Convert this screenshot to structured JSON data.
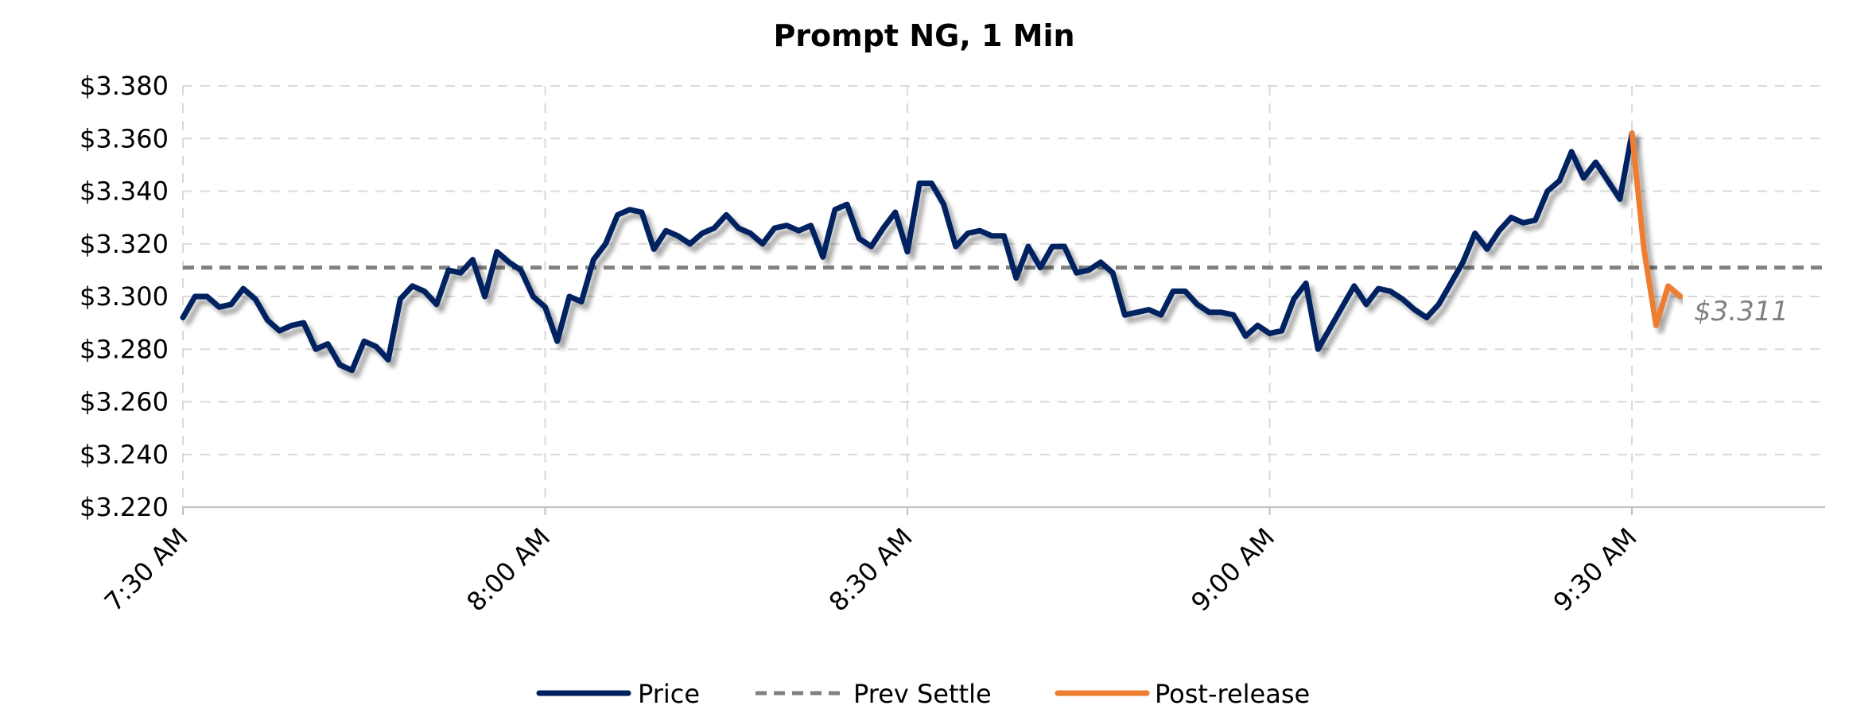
{
  "chart_data": {
    "type": "line",
    "title": "Prompt NG, 1 Min",
    "xlabel": "",
    "ylabel": "",
    "ylim": [
      3.22,
      3.38
    ],
    "y_ticks": [
      "$3.220",
      "$3.240",
      "$3.260",
      "$3.280",
      "$3.300",
      "$3.320",
      "$3.340",
      "$3.360",
      "$3.380"
    ],
    "x_ticks": [
      "7:30 AM",
      "8:00 AM",
      "8:30 AM",
      "9:00 AM",
      "9:30 AM"
    ],
    "xlim": [
      "7:30",
      "9:46"
    ],
    "grid": true,
    "legend_position": "bottom",
    "annotation": "$3.311",
    "colors": {
      "price": "#002060",
      "prev_settle": "#808080",
      "post_release": "#ED7D31",
      "grid": "#D9D9D9"
    },
    "series": [
      {
        "name": "Price",
        "style": "solid",
        "points": [
          [
            "7:30",
            3.292
          ],
          [
            "7:31",
            3.3
          ],
          [
            "7:32",
            3.3
          ],
          [
            "7:33",
            3.296
          ],
          [
            "7:34",
            3.297
          ],
          [
            "7:35",
            3.303
          ],
          [
            "7:36",
            3.299
          ],
          [
            "7:37",
            3.291
          ],
          [
            "7:38",
            3.287
          ],
          [
            "7:39",
            3.289
          ],
          [
            "7:40",
            3.29
          ],
          [
            "7:41",
            3.28
          ],
          [
            "7:42",
            3.282
          ],
          [
            "7:43",
            3.274
          ],
          [
            "7:44",
            3.272
          ],
          [
            "7:45",
            3.283
          ],
          [
            "7:46",
            3.281
          ],
          [
            "7:47",
            3.276
          ],
          [
            "7:48",
            3.299
          ],
          [
            "7:49",
            3.304
          ],
          [
            "7:50",
            3.302
          ],
          [
            "7:51",
            3.297
          ],
          [
            "7:52",
            3.31
          ],
          [
            "7:53",
            3.309
          ],
          [
            "7:54",
            3.314
          ],
          [
            "7:55",
            3.3
          ],
          [
            "7:56",
            3.317
          ],
          [
            "7:57",
            3.313
          ],
          [
            "7:58",
            3.31
          ],
          [
            "7:59",
            3.3
          ],
          [
            "8:00",
            3.296
          ],
          [
            "8:01",
            3.283
          ],
          [
            "8:02",
            3.3
          ],
          [
            "8:03",
            3.298
          ],
          [
            "8:04",
            3.314
          ],
          [
            "8:05",
            3.32
          ],
          [
            "8:06",
            3.331
          ],
          [
            "8:07",
            3.333
          ],
          [
            "8:08",
            3.332
          ],
          [
            "8:09",
            3.318
          ],
          [
            "8:10",
            3.325
          ],
          [
            "8:11",
            3.323
          ],
          [
            "8:12",
            3.32
          ],
          [
            "8:13",
            3.324
          ],
          [
            "8:14",
            3.326
          ],
          [
            "8:15",
            3.331
          ],
          [
            "8:16",
            3.326
          ],
          [
            "8:17",
            3.324
          ],
          [
            "8:18",
            3.32
          ],
          [
            "8:19",
            3.326
          ],
          [
            "8:20",
            3.327
          ],
          [
            "8:21",
            3.325
          ],
          [
            "8:22",
            3.327
          ],
          [
            "8:23",
            3.315
          ],
          [
            "8:24",
            3.333
          ],
          [
            "8:25",
            3.335
          ],
          [
            "8:26",
            3.322
          ],
          [
            "8:27",
            3.319
          ],
          [
            "8:28",
            3.326
          ],
          [
            "8:29",
            3.332
          ],
          [
            "8:30",
            3.317
          ],
          [
            "8:31",
            3.343
          ],
          [
            "8:32",
            3.343
          ],
          [
            "8:33",
            3.335
          ],
          [
            "8:34",
            3.319
          ],
          [
            "8:35",
            3.324
          ],
          [
            "8:36",
            3.325
          ],
          [
            "8:37",
            3.323
          ],
          [
            "8:38",
            3.323
          ],
          [
            "8:39",
            3.307
          ],
          [
            "8:40",
            3.319
          ],
          [
            "8:41",
            3.311
          ],
          [
            "8:42",
            3.319
          ],
          [
            "8:43",
            3.319
          ],
          [
            "8:44",
            3.309
          ],
          [
            "8:45",
            3.31
          ],
          [
            "8:46",
            3.313
          ],
          [
            "8:47",
            3.309
          ],
          [
            "8:48",
            3.293
          ],
          [
            "8:49",
            3.294
          ],
          [
            "8:50",
            3.295
          ],
          [
            "8:51",
            3.293
          ],
          [
            "8:52",
            3.302
          ],
          [
            "8:53",
            3.302
          ],
          [
            "8:54",
            3.297
          ],
          [
            "8:55",
            3.294
          ],
          [
            "8:56",
            3.294
          ],
          [
            "8:57",
            3.293
          ],
          [
            "8:58",
            3.285
          ],
          [
            "8:59",
            3.289
          ],
          [
            "9:00",
            3.286
          ],
          [
            "9:01",
            3.287
          ],
          [
            "9:02",
            3.299
          ],
          [
            "9:03",
            3.305
          ],
          [
            "9:04",
            3.28
          ],
          [
            "9:05",
            3.288
          ],
          [
            "9:06",
            3.296
          ],
          [
            "9:07",
            3.304
          ],
          [
            "9:08",
            3.297
          ],
          [
            "9:09",
            3.303
          ],
          [
            "9:10",
            3.302
          ],
          [
            "9:11",
            3.299
          ],
          [
            "9:12",
            3.295
          ],
          [
            "9:13",
            3.292
          ],
          [
            "9:14",
            3.297
          ],
          [
            "9:15",
            3.305
          ],
          [
            "9:16",
            3.313
          ],
          [
            "9:17",
            3.324
          ],
          [
            "9:18",
            3.318
          ],
          [
            "9:19",
            3.325
          ],
          [
            "9:20",
            3.33
          ],
          [
            "9:21",
            3.328
          ],
          [
            "9:22",
            3.329
          ],
          [
            "9:23",
            3.34
          ],
          [
            "9:24",
            3.344
          ],
          [
            "9:25",
            3.355
          ],
          [
            "9:26",
            3.345
          ],
          [
            "9:27",
            3.351
          ],
          [
            "9:28",
            3.344
          ],
          [
            "9:29",
            3.337
          ],
          [
            "9:30",
            3.362
          ]
        ]
      },
      {
        "name": "Prev Settle",
        "style": "dashed",
        "points": [
          [
            "7:30",
            3.311
          ],
          [
            "9:46",
            3.311
          ]
        ]
      },
      {
        "name": "Post-release",
        "style": "solid",
        "points": [
          [
            "9:30",
            3.362
          ],
          [
            "9:31",
            3.318
          ],
          [
            "9:32",
            3.289
          ],
          [
            "9:33",
            3.304
          ],
          [
            "9:34",
            3.3
          ]
        ]
      }
    ]
  }
}
